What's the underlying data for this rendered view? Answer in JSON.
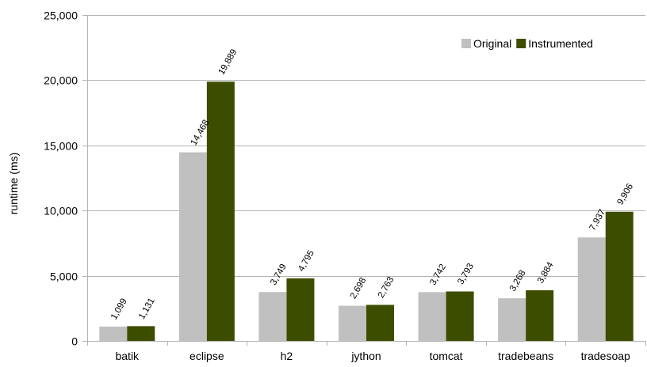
{
  "chart_data": {
    "type": "bar",
    "title": "",
    "xlabel": "",
    "ylabel": "runtime (ms)",
    "ylim": [
      0,
      25000
    ],
    "yticks": [
      "0",
      "5,000",
      "10,000",
      "15,000",
      "20,000",
      "25,000"
    ],
    "ytick_values": [
      0,
      5000,
      10000,
      15000,
      20000,
      25000
    ],
    "grid": true,
    "legend_position": "top-right",
    "categories": [
      "batik",
      "eclipse",
      "h2",
      "jython",
      "tomcat",
      "tradebeans",
      "tradesoap"
    ],
    "series": [
      {
        "name": "Original",
        "color": "#c0c0c0",
        "values": [
          1099,
          14468,
          3749,
          2698,
          3742,
          3268,
          7937
        ],
        "labels": [
          "1,099",
          "14,468",
          "3,749",
          "2,698",
          "3,742",
          "3,268",
          "7,937"
        ]
      },
      {
        "name": "Instrumented",
        "color": "#3d4d00",
        "values": [
          1131,
          19889,
          4795,
          2763,
          3793,
          3884,
          9906
        ],
        "labels": [
          "1,131",
          "19,889",
          "4,795",
          "2,763",
          "3,793",
          "3,884",
          "9,906"
        ]
      }
    ]
  }
}
